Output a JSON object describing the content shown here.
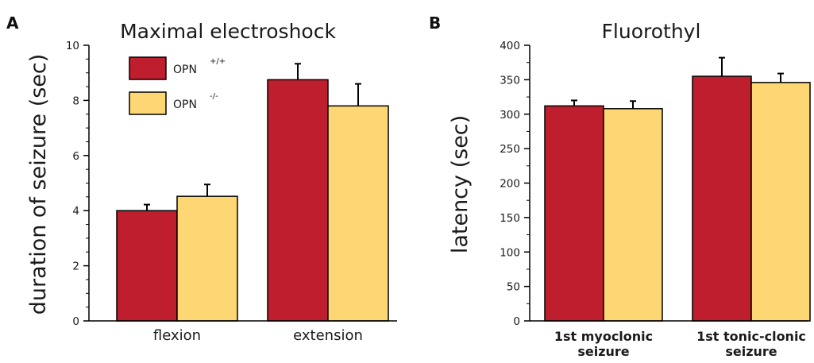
{
  "figure": {
    "panels": [
      {
        "letter": "A"
      },
      {
        "letter": "B"
      }
    ]
  },
  "chart_data": [
    {
      "type": "bar",
      "title": "Maximal electroshock",
      "xlabel": "",
      "ylabel": "duration of seizure (sec)",
      "ylim": [
        0,
        10
      ],
      "yticks": [
        "0",
        "2",
        "4",
        "6",
        "8",
        "10"
      ],
      "categories": [
        "flexion",
        "extension"
      ],
      "legend_position": "top-left",
      "series": [
        {
          "name": "OPN",
          "superscript": "+/+",
          "color": "#be1e2d",
          "values": [
            4.0,
            8.75
          ],
          "errors": [
            0.22,
            0.58
          ]
        },
        {
          "name": "OPN",
          "superscript": "-/-",
          "color": "#fdd774",
          "values": [
            4.52,
            7.8
          ],
          "errors": [
            0.43,
            0.8
          ]
        }
      ]
    },
    {
      "type": "bar",
      "title": "Fluorothyl",
      "xlabel": "",
      "ylabel": "latency (sec)",
      "ylim": [
        0,
        400
      ],
      "yticks": [
        "0",
        "50",
        "100",
        "150",
        "200",
        "250",
        "300",
        "350",
        "400"
      ],
      "categories": [
        [
          "1st myoclonic",
          "seizure"
        ],
        [
          "1st tonic-clonic",
          "seizure"
        ]
      ],
      "series": [
        {
          "color": "#be1e2d",
          "values": [
            312,
            355
          ],
          "errors": [
            8,
            27
          ]
        },
        {
          "color": "#fdd774",
          "values": [
            308,
            346
          ],
          "errors": [
            11,
            13
          ]
        }
      ]
    }
  ]
}
